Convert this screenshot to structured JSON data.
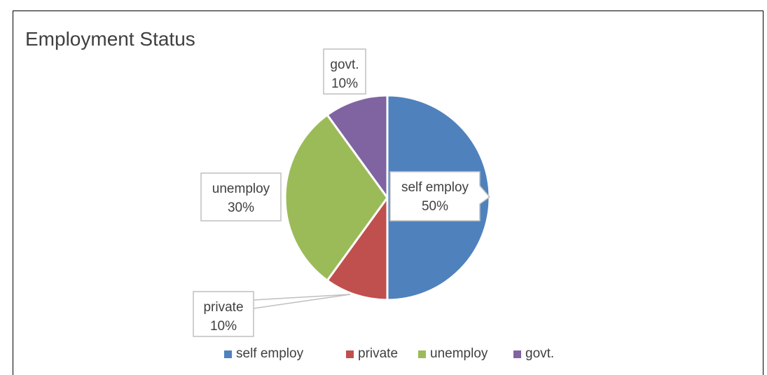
{
  "chart_data": {
    "type": "pie",
    "title": "Employment Status",
    "categories": [
      "self employ",
      "private",
      "unemploy",
      "govt."
    ],
    "values": [
      50,
      10,
      30,
      10
    ],
    "data_labels": [
      "50%",
      "10%",
      "30%",
      "10%"
    ],
    "colors": [
      "#4f81bd",
      "#c0504d",
      "#9bbb59",
      "#8064a2"
    ],
    "legend_position": "bottom"
  }
}
